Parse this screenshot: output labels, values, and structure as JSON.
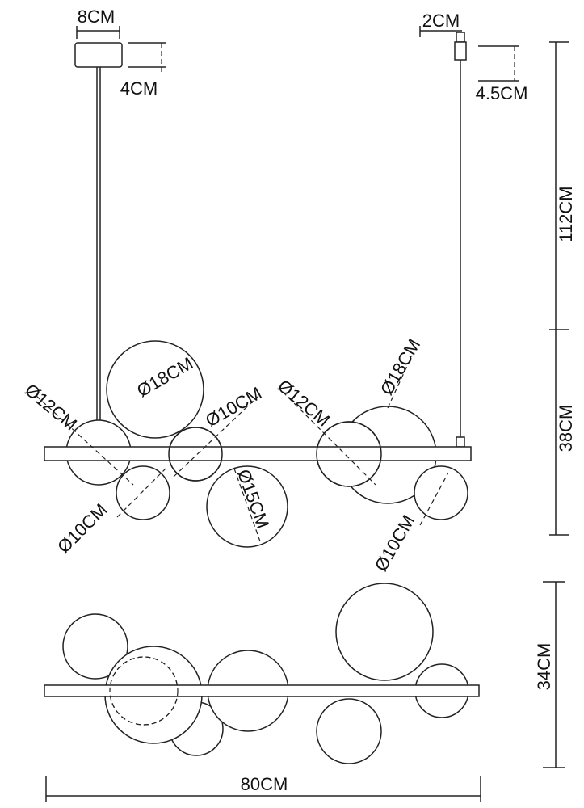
{
  "front_view": {
    "canopy_width": "8CM",
    "canopy_height": "4CM",
    "connector_width": "2CM",
    "connector_height": "4.5CM",
    "cable_length": "112CM",
    "fixture_height": "38CM",
    "shade_labels": [
      "Ø12CM",
      "Ø18CM",
      "Ø10CM",
      "Ø12CM",
      "Ø18CM",
      "Ø10CM",
      "Ø15CM",
      "Ø10CM"
    ]
  },
  "top_view": {
    "depth": "34CM",
    "length": "80CM"
  }
}
